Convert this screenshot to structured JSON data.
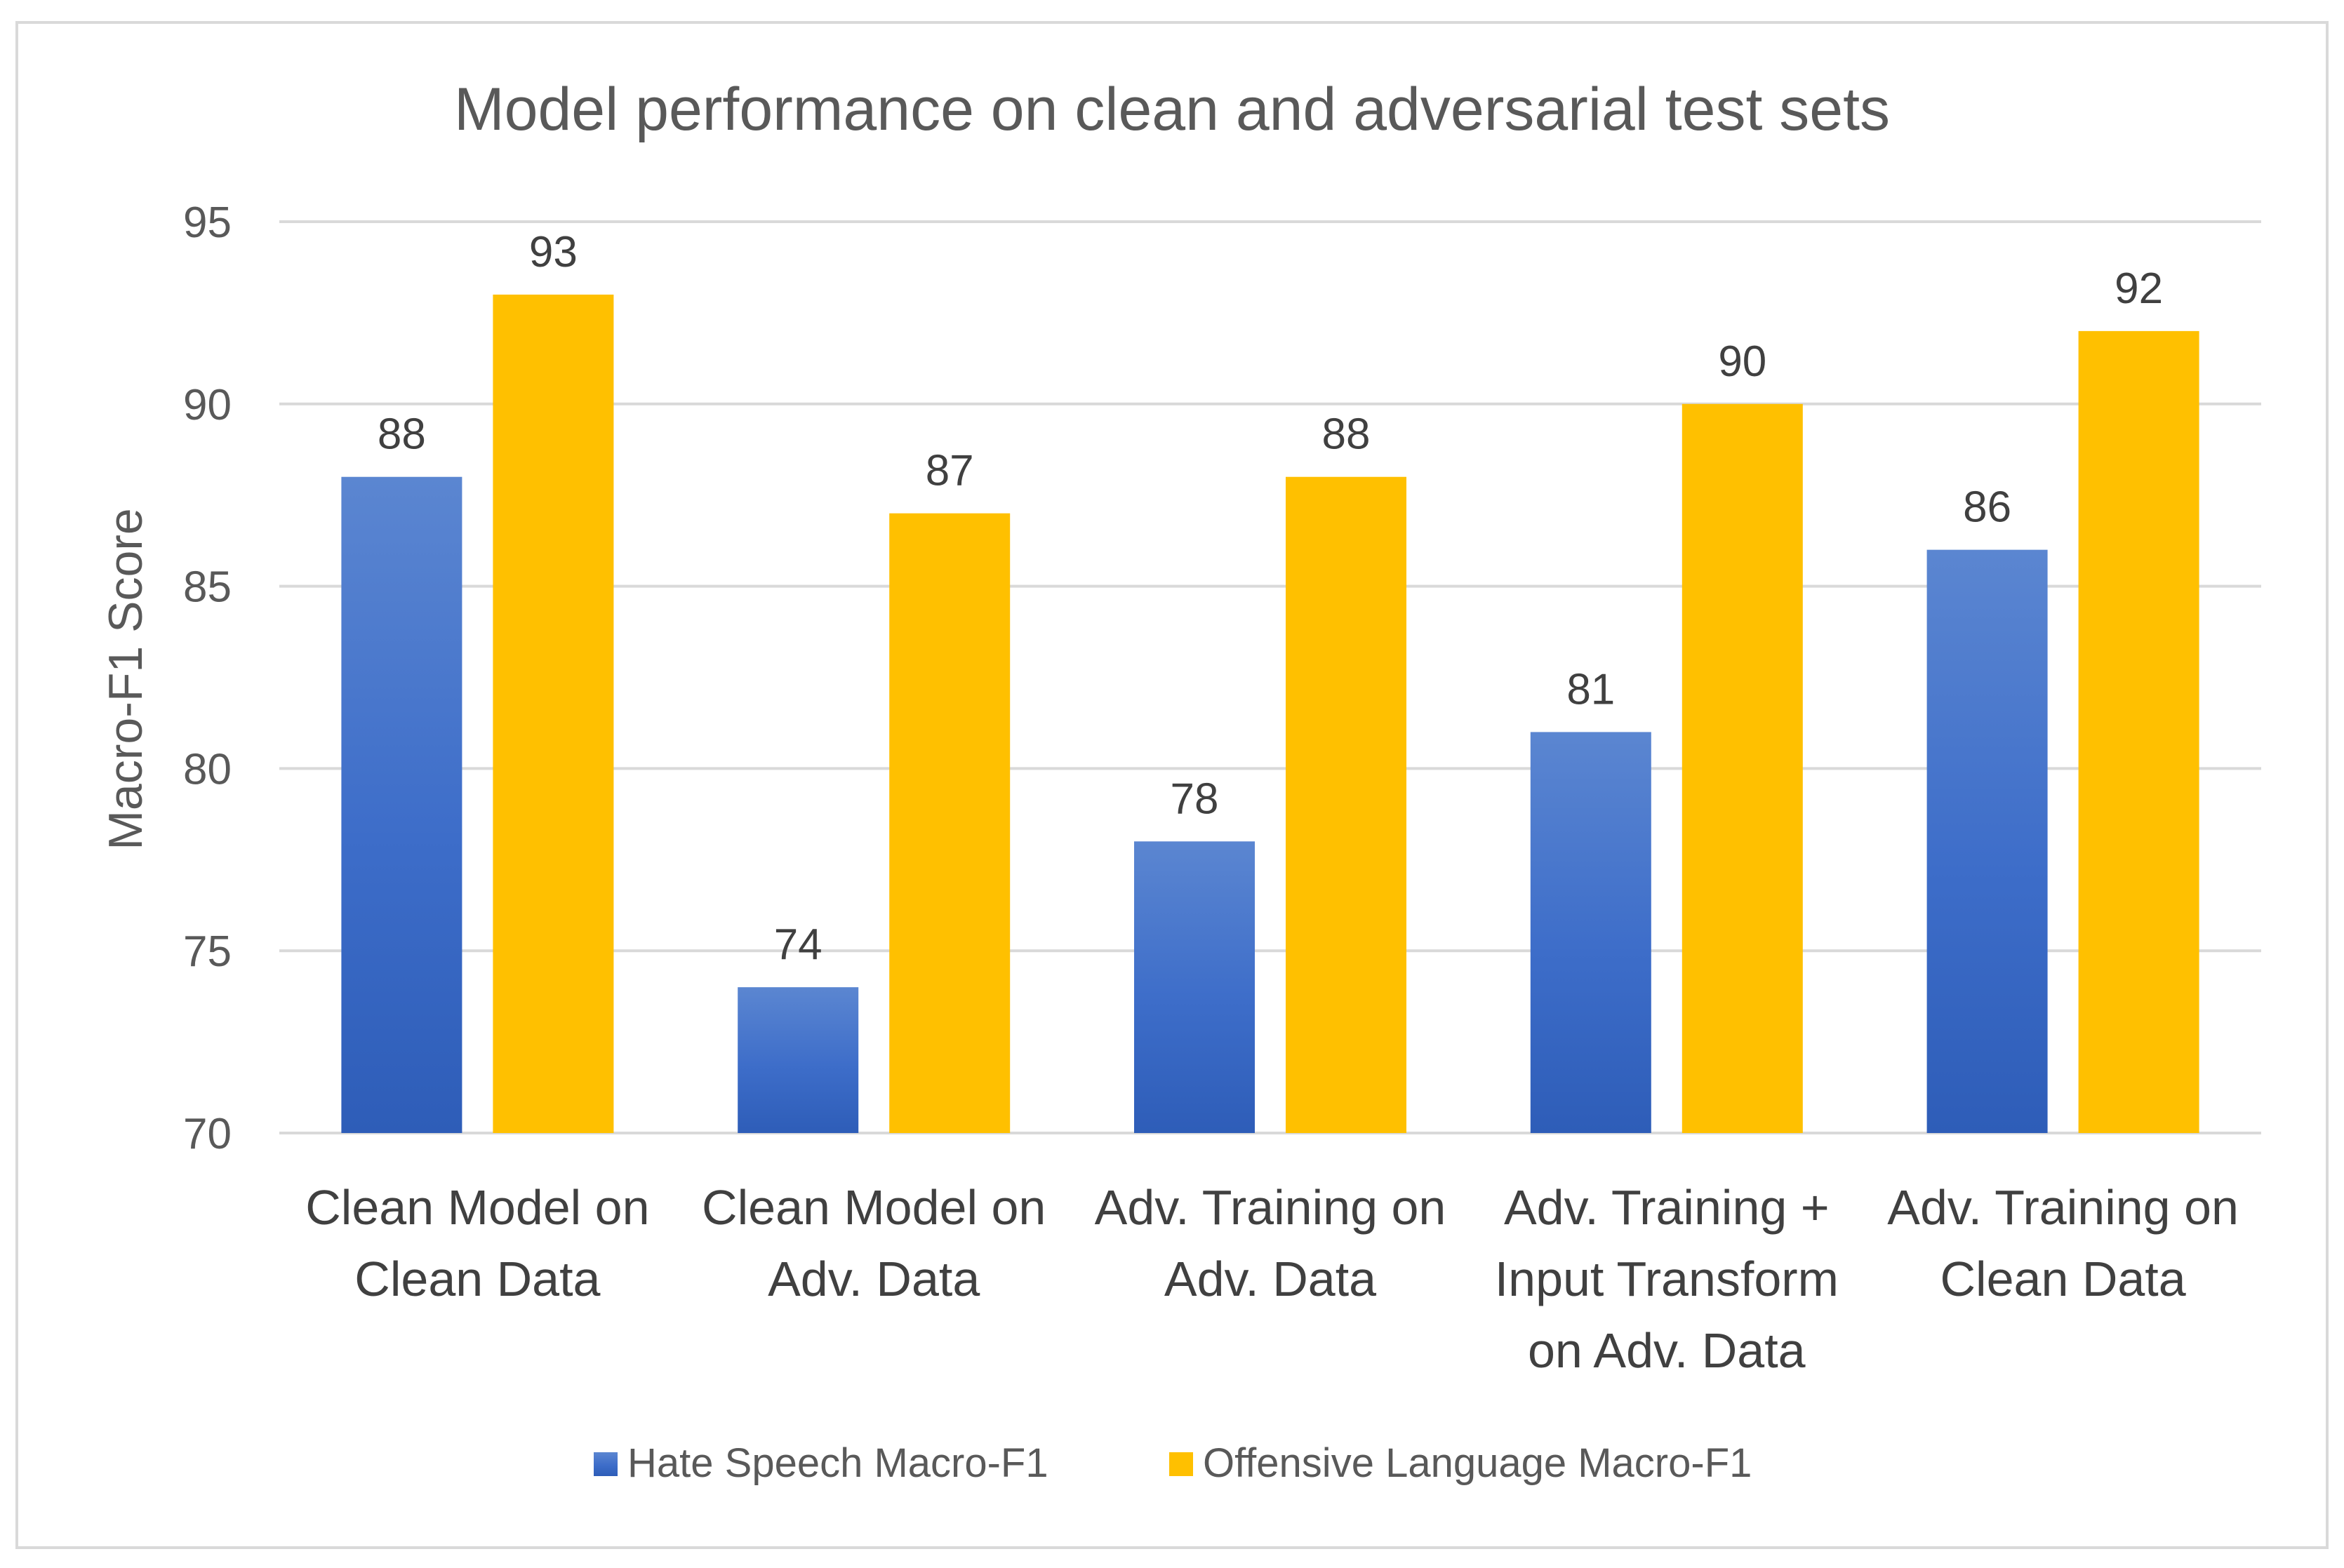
{
  "chart_data": {
    "type": "bar",
    "title": "Model performance on clean and adversarial test sets",
    "xlabel": "",
    "ylabel": "Macro-F1 Score",
    "ylim": [
      70,
      95
    ],
    "yticks": [
      70,
      75,
      80,
      85,
      90,
      95
    ],
    "grid": true,
    "legend_position": "bottom",
    "categories": [
      [
        "Clean Model on",
        "Clean Data"
      ],
      [
        "Clean Model on",
        "Adv. Data"
      ],
      [
        "Adv. Training on",
        "Adv. Data"
      ],
      [
        "Adv. Training +",
        "Input Transform",
        "on Adv. Data"
      ],
      [
        "Adv. Training on",
        "Clean Data"
      ]
    ],
    "series": [
      {
        "name": "Hate Speech Macro-F1",
        "color": "#4472C4",
        "values": [
          88,
          74,
          78,
          81,
          86
        ]
      },
      {
        "name": "Offensive Language Macro-F1",
        "color": "#FFC000",
        "values": [
          93,
          87,
          88,
          90,
          92
        ]
      }
    ]
  }
}
